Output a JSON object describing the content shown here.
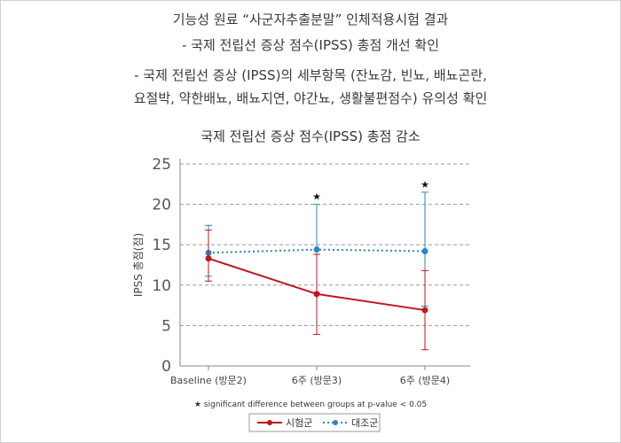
{
  "header": {
    "line1": "기능성 원료 “사군자추출분말” 인체적용시험 결과",
    "line2": "- 국제 전립선 증상 점수(IPSS) 총점 개선 확인",
    "line3": "- 국제 전립선 증상 (IPSS)의 세부항목 (잔뇨감, 빈뇨, 배뇨곤란,",
    "line4": "요절박, 약한배뇨, 배뇨지연, 야간뇨, 생활불편점수) 유의성 확인"
  },
  "chart_data": {
    "type": "line",
    "title": "국제 전립선 증상 점수(IPSS) 총점 감소",
    "ylabel": "IPSS 총점(점)",
    "xlabel": "",
    "categories": [
      "Baseline (방문2)",
      "6주 (방문3)",
      "6주 (방문4)"
    ],
    "ylim": [
      0,
      25
    ],
    "yticks": [
      0,
      5,
      10,
      15,
      20,
      25
    ],
    "grid": true,
    "series": [
      {
        "name": "시험군",
        "color": "#c0161c",
        "style": "solid",
        "values": [
          13.3,
          8.9,
          6.9
        ],
        "err_low": [
          10.5,
          3.9,
          2.0
        ],
        "err_high": [
          16.8,
          13.8,
          11.8
        ]
      },
      {
        "name": "대조군",
        "color": "#2b86c8",
        "style": "dotted",
        "values": [
          14.0,
          14.4,
          14.2
        ],
        "err_low": [
          11.1,
          9.0,
          7.4
        ],
        "err_high": [
          17.4,
          20.0,
          21.5
        ]
      }
    ],
    "significance_marker": "★",
    "significance_at": [
      "6주 (방문3)",
      "6주 (방문4)"
    ],
    "footnote": "★ significant difference between groups at p-value < 0.05",
    "legend_placement": "bottom-center"
  }
}
